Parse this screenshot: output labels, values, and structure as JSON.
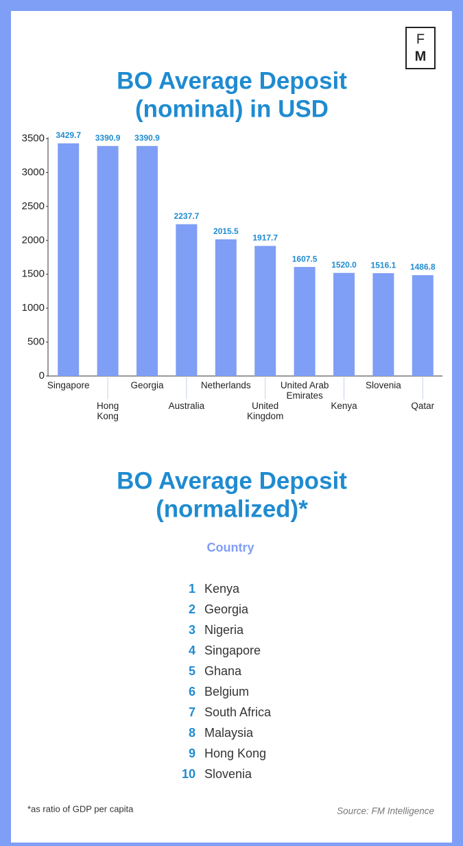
{
  "logo": {
    "top": "F",
    "bottom": "M"
  },
  "chart_data": {
    "type": "bar",
    "title": "BO Average Deposit",
    "subtitle": "(nominal) in USD",
    "categories": [
      "Singapore",
      "Hong Kong",
      "Georgia",
      "Australia",
      "Netherlands",
      "United Kingdom",
      "United Arab Emirates",
      "Kenya",
      "Slovenia",
      "Qatar"
    ],
    "values": [
      3429.7,
      3390.9,
      3390.9,
      2237.7,
      2015.5,
      1917.7,
      1607.5,
      1520.0,
      1516.1,
      1486.8
    ],
    "value_labels": [
      "3429.7",
      "3390.9",
      "3390.9",
      "2237.7",
      "2015.5",
      "1917.7",
      "1607.5",
      "1520.0",
      "1516.1",
      "1486.8"
    ],
    "color": "#7f9ef5",
    "ylim": [
      0,
      3500
    ],
    "yticks": [
      0,
      500,
      1000,
      1500,
      2000,
      2500,
      3000,
      3500
    ],
    "grid": false
  },
  "ranking": {
    "title": "BO Average Deposit",
    "subtitle": "(normalized)*",
    "header": "Country",
    "ranks": [
      "1",
      "2",
      "3",
      "4",
      "5",
      "6",
      "7",
      "8",
      "9",
      "10"
    ],
    "countries": [
      "Kenya",
      "Georgia",
      "Nigeria",
      "Singapore",
      "Ghana",
      "Belgium",
      "South Africa",
      "Malaysia",
      "Hong Kong",
      "Slovenia"
    ]
  },
  "footnote": "*as ratio of GDP per capita",
  "source": "Source: FM Intelligence"
}
